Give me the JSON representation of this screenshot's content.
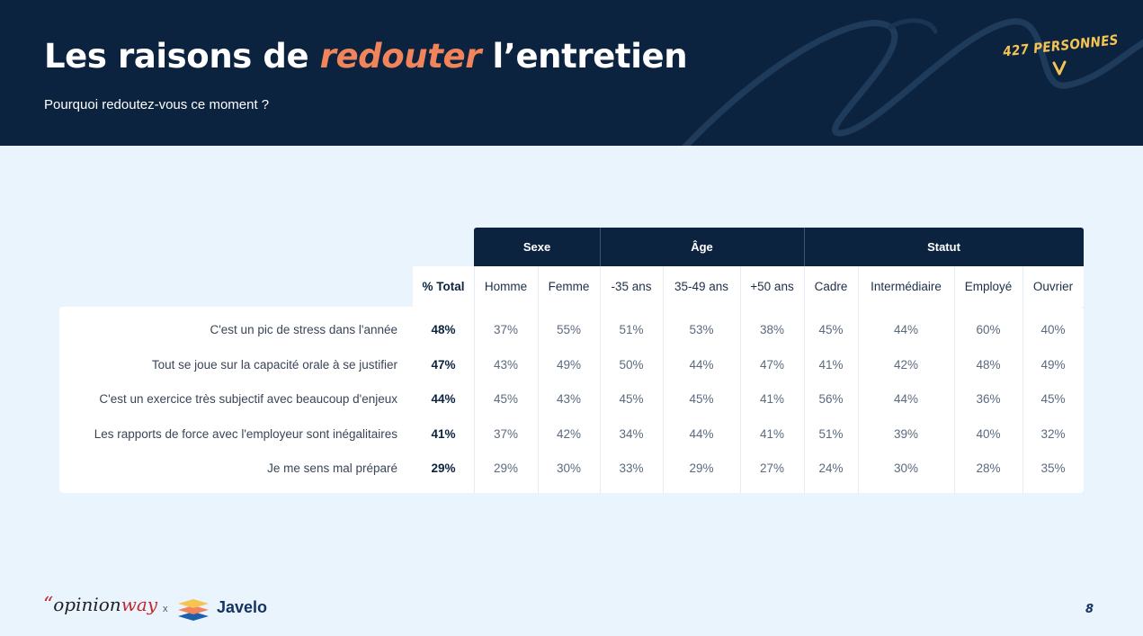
{
  "header": {
    "title_before": "Les raisons de ",
    "title_accent": "redouter",
    "title_after": " l’entretien",
    "subtitle": "Pourquoi redoutez-vous ce moment ?",
    "badge": "427 PERSONNES"
  },
  "colors": {
    "navy": "#0c233f",
    "accent": "#f2845c",
    "badge": "#f6c453",
    "background": "#eaf4fd"
  },
  "table": {
    "groups": [
      "Sexe",
      "Âge",
      "Statut"
    ],
    "columns": [
      "% Total",
      "Homme",
      "Femme",
      "-35 ans",
      "35-49 ans",
      "+50 ans",
      "Cadre",
      "Intermédiaire",
      "Employé",
      "Ouvrier"
    ],
    "rows": [
      {
        "label": "C'est un pic de stress dans l'année",
        "values": [
          "48%",
          "37%",
          "55%",
          "51%",
          "53%",
          "38%",
          "45%",
          "44%",
          "60%",
          "40%"
        ]
      },
      {
        "label": "Tout se joue sur la capacité orale à se justifier",
        "values": [
          "47%",
          "43%",
          "49%",
          "50%",
          "44%",
          "47%",
          "41%",
          "42%",
          "48%",
          "49%"
        ]
      },
      {
        "label": "C'est un exercice très subjectif avec beaucoup d'enjeux",
        "values": [
          "44%",
          "45%",
          "43%",
          "45%",
          "45%",
          "41%",
          "56%",
          "44%",
          "36%",
          "45%"
        ]
      },
      {
        "label": "Les rapports de force avec l'employeur sont inégalitaires",
        "values": [
          "41%",
          "37%",
          "42%",
          "34%",
          "44%",
          "41%",
          "51%",
          "39%",
          "40%",
          "32%"
        ]
      },
      {
        "label": "Je me sens mal préparé",
        "values": [
          "29%",
          "29%",
          "30%",
          "33%",
          "29%",
          "27%",
          "24%",
          "30%",
          "28%",
          "35%"
        ]
      }
    ]
  },
  "footer": {
    "brand_quote": "“",
    "brand_opinion": "opinion",
    "brand_way": "way",
    "separator": "x",
    "partner": "Javelo",
    "page_number": "8"
  }
}
